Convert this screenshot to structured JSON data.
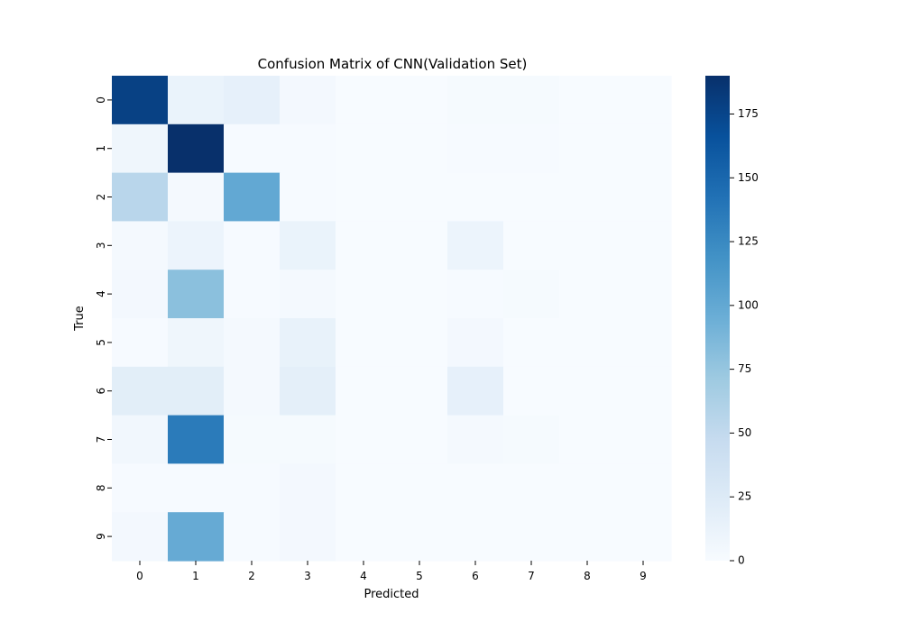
{
  "chart_data": {
    "type": "heatmap",
    "title": "Confusion Matrix of CNN(Validation Set)",
    "xlabel": "Predicted",
    "ylabel": "True",
    "x_categories": [
      "0",
      "1",
      "2",
      "3",
      "4",
      "5",
      "6",
      "7",
      "8",
      "9"
    ],
    "y_categories": [
      "0",
      "1",
      "2",
      "3",
      "4",
      "5",
      "6",
      "7",
      "8",
      "9"
    ],
    "values": [
      [
        178,
        12,
        16,
        4,
        0,
        0,
        2,
        2,
        0,
        0
      ],
      [
        8,
        190,
        1,
        1,
        0,
        0,
        1,
        1,
        0,
        0
      ],
      [
        55,
        3,
        100,
        1,
        0,
        0,
        0,
        0,
        0,
        0
      ],
      [
        3,
        10,
        1,
        12,
        0,
        0,
        10,
        0,
        0,
        0
      ],
      [
        4,
        80,
        1,
        3,
        0,
        0,
        1,
        2,
        0,
        0
      ],
      [
        1,
        8,
        3,
        14,
        0,
        0,
        4,
        0,
        0,
        0
      ],
      [
        20,
        20,
        3,
        18,
        0,
        0,
        16,
        0,
        0,
        0
      ],
      [
        6,
        135,
        2,
        2,
        0,
        0,
        3,
        2,
        0,
        0
      ],
      [
        1,
        1,
        1,
        4,
        0,
        0,
        0,
        0,
        0,
        0
      ],
      [
        4,
        98,
        1,
        4,
        0,
        0,
        0,
        0,
        0,
        0
      ]
    ],
    "colorbar": {
      "min": 0,
      "max": 190,
      "ticks": [
        0,
        25,
        50,
        75,
        100,
        125,
        150,
        175
      ]
    },
    "colormap": "Blues",
    "colors": {
      "low": "#f7fbff",
      "high": "#08306b"
    }
  }
}
